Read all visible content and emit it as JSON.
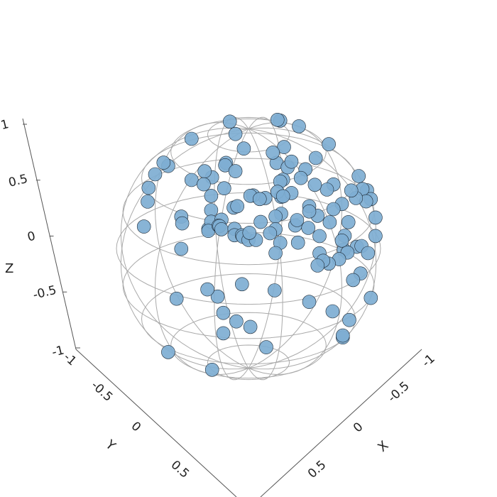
{
  "chart_data": {
    "type": "scatter",
    "projection": "3d",
    "title": "",
    "xlabel": "X",
    "ylabel": "Y",
    "zlabel": "Z",
    "xlim": [
      -1,
      1
    ],
    "ylim": [
      -1,
      1
    ],
    "zlim": [
      -1,
      1
    ],
    "x_ticks": [
      "-1",
      "-0.5",
      "0",
      "0.5"
    ],
    "y_ticks": [
      "-1",
      "-0.5",
      "0",
      "0.5"
    ],
    "z_ticks": [
      "1",
      "0.5",
      "0",
      "-0.5",
      "-1"
    ],
    "grid": "unit sphere wireframe",
    "marker_color": "#7eaed3",
    "grid_color": "#aaaaaa",
    "points": [
      [
        0.69,
        0.4,
        0.6
      ],
      [
        0.68,
        0.53,
        0.51
      ],
      [
        0.64,
        0.57,
        0.51
      ],
      [
        0.72,
        0.43,
        0.54
      ],
      [
        0.62,
        0.62,
        0.48
      ],
      [
        0.6,
        0.61,
        0.53
      ],
      [
        0.74,
        0.34,
        0.58
      ],
      [
        0.72,
        0.4,
        0.56
      ],
      [
        0.78,
        0.35,
        0.52
      ],
      [
        0.58,
        0.66,
        0.48
      ],
      [
        0.66,
        0.51,
        0.55
      ],
      [
        0.7,
        0.3,
        0.65
      ],
      [
        0.57,
        0.45,
        0.69
      ],
      [
        0.72,
        0.41,
        0.56
      ],
      [
        0.64,
        0.58,
        0.5
      ],
      [
        0.49,
        0.78,
        0.38
      ],
      [
        0.42,
        0.54,
        0.73
      ],
      [
        0.39,
        0.68,
        0.62
      ],
      [
        0.44,
        0.49,
        0.75
      ],
      [
        0.55,
        0.29,
        0.78
      ],
      [
        0.62,
        0.01,
        0.78
      ],
      [
        0.41,
        0.27,
        0.87
      ],
      [
        0.26,
        0.78,
        0.58
      ],
      [
        0.26,
        0.63,
        0.73
      ],
      [
        0.53,
        0.06,
        0.84
      ],
      [
        0.28,
        0.59,
        0.76
      ],
      [
        0.64,
        0.24,
        0.73
      ],
      [
        0.42,
        0.17,
        0.89
      ],
      [
        0.82,
        0.1,
        0.57
      ],
      [
        0.13,
        0.78,
        0.61
      ],
      [
        0.44,
        0.78,
        0.45
      ],
      [
        0.15,
        0.95,
        0.26
      ],
      [
        0.91,
        0.19,
        0.36
      ],
      [
        0.4,
        0.16,
        0.9
      ],
      [
        0.11,
        0.76,
        0.64
      ],
      [
        0.48,
        0.71,
        0.52
      ],
      [
        0.04,
        0.6,
        0.8
      ],
      [
        0.43,
        0.72,
        0.54
      ],
      [
        0.46,
        0.48,
        0.75
      ],
      [
        0.77,
        0.34,
        0.53
      ],
      [
        -0.09,
        0.82,
        0.57
      ],
      [
        -0.12,
        0.72,
        0.69
      ],
      [
        0.08,
        0.82,
        0.57
      ],
      [
        0.28,
        -0.33,
        0.9
      ],
      [
        0.52,
        -0.39,
        0.76
      ],
      [
        0.08,
        0.34,
        0.94
      ],
      [
        -0.05,
        0.56,
        0.83
      ],
      [
        0.34,
        0.69,
        0.63
      ],
      [
        -0.1,
        0.96,
        0.25
      ],
      [
        0.13,
        0.89,
        0.44
      ],
      [
        -0.2,
        0.8,
        0.57
      ],
      [
        0.19,
        0.65,
        0.74
      ],
      [
        -0.05,
        0.33,
        0.94
      ],
      [
        -0.04,
        0.67,
        0.74
      ],
      [
        0.12,
        -0.02,
        0.99
      ],
      [
        -0.22,
        0.69,
        0.69
      ],
      [
        -0.01,
        0.86,
        0.5
      ],
      [
        0.84,
        0.13,
        0.53
      ],
      [
        -0.39,
        0.71,
        0.59
      ],
      [
        -0.41,
        -0.07,
        0.91
      ],
      [
        0.78,
        -0.3,
        0.55
      ],
      [
        0.21,
        0.95,
        0.24
      ],
      [
        -0.56,
        0.7,
        0.44
      ],
      [
        -0.07,
        0.93,
        0.35
      ],
      [
        0.0,
        0.97,
        0.23
      ],
      [
        0.85,
        0.52,
        0.05
      ],
      [
        0.8,
        0.53,
        -0.27
      ],
      [
        0.21,
        0.55,
        0.81
      ],
      [
        -0.34,
        -0.54,
        0.77
      ],
      [
        -0.13,
        0.99,
        0.02
      ],
      [
        0.11,
        0.97,
        0.23
      ],
      [
        -0.41,
        0.74,
        0.53
      ],
      [
        -0.39,
        -0.08,
        0.92
      ],
      [
        0.83,
        0.56,
        -0.08
      ],
      [
        0.89,
        0.45,
        0.1
      ],
      [
        -0.55,
        0.81,
        0.19
      ],
      [
        0.68,
        0.7,
        -0.2
      ],
      [
        0.73,
        0.66,
        0.16
      ],
      [
        -0.59,
        -0.05,
        0.81
      ],
      [
        0.61,
        0.13,
        0.78
      ],
      [
        -0.81,
        -0.51,
        0.28
      ],
      [
        0.55,
        0.74,
        -0.4
      ],
      [
        -0.07,
        -0.93,
        0.36
      ],
      [
        -0.59,
        0.63,
        0.51
      ],
      [
        -0.75,
        0.52,
        0.41
      ],
      [
        -0.16,
        0.85,
        -0.5
      ],
      [
        0.59,
        -0.27,
        -0.76
      ],
      [
        -0.81,
        0.37,
        0.46
      ],
      [
        -0.41,
        0.6,
        -0.68
      ],
      [
        -0.15,
        0.93,
        -0.34
      ],
      [
        0.64,
        0.25,
        -0.72
      ],
      [
        -0.72,
        0.14,
        0.68
      ],
      [
        -0.62,
        -0.67,
        0.41
      ],
      [
        0.13,
        -0.99,
        -0.1
      ],
      [
        -0.75,
        0.56,
        0.35
      ],
      [
        -0.9,
        -0.18,
        0.4
      ],
      [
        0.1,
        -0.97,
        0.22
      ],
      [
        -0.86,
        -0.49,
        0.13
      ],
      [
        0.06,
        -0.94,
        0.33
      ],
      [
        -0.59,
        0.72,
        -0.37
      ],
      [
        -0.83,
        0.53,
        0.16
      ],
      [
        -0.86,
        -0.4,
        0.31
      ],
      [
        -0.86,
        -0.44,
        0.25
      ],
      [
        -0.79,
        -0.61,
        -0.04
      ],
      [
        -0.9,
        0.38,
        -0.21
      ],
      [
        -0.3,
        -0.43,
        -0.85
      ],
      [
        -0.91,
        -0.15,
        -0.39
      ],
      [
        -0.48,
        -0.87,
        0.15
      ],
      [
        -0.64,
        -0.36,
        -0.68
      ],
      [
        -0.99,
        0.08,
        -0.08
      ],
      [
        -0.86,
        0.34,
        -0.38
      ],
      [
        0.02,
        -0.75,
        -0.66
      ],
      [
        -0.7,
        0.2,
        -0.69
      ],
      [
        -0.89,
        -0.39,
        -0.23
      ],
      [
        -0.87,
        -0.34,
        -0.35
      ],
      [
        -0.93,
        -0.29,
        -0.23
      ],
      [
        -0.95,
        0.21,
        -0.23
      ],
      [
        -0.86,
        -0.51,
        -0.02
      ],
      [
        -0.94,
        0.27,
        -0.2
      ],
      [
        -0.71,
        -0.06,
        -0.7
      ],
      [
        -0.62,
        -0.78,
        -0.12
      ],
      [
        -0.95,
        0.07,
        -0.3
      ],
      [
        -0.98,
        0.05,
        -0.2
      ],
      [
        -0.75,
        -0.62,
        -0.23
      ]
    ]
  }
}
